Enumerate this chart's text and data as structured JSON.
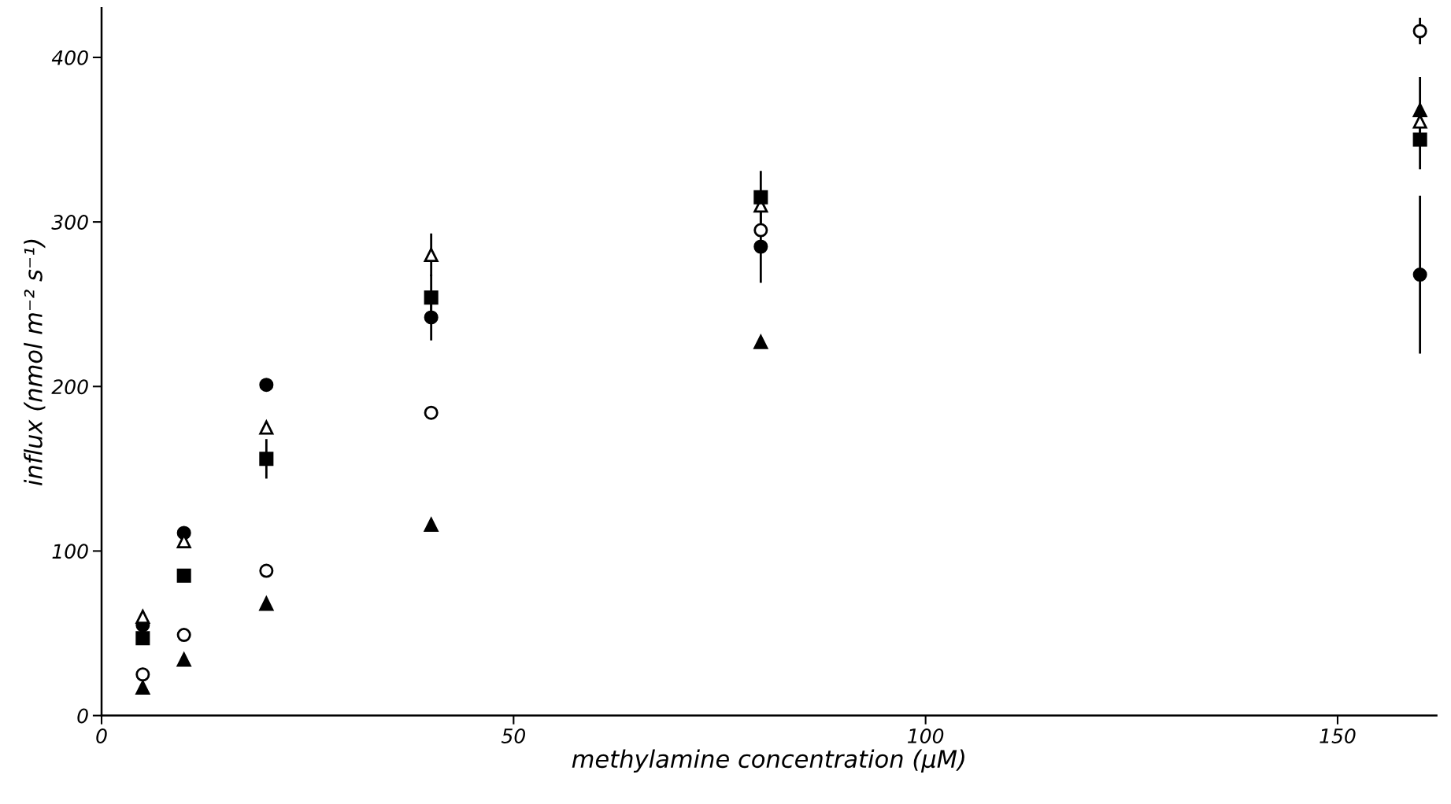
{
  "chart_data": {
    "type": "scatter",
    "xlabel": "methylamine concentration (μM)",
    "ylabel": "influx (nmol m⁻² s⁻¹)",
    "x": [
      5,
      10,
      20,
      40,
      80,
      160
    ],
    "xlim": [
      0,
      162
    ],
    "xticks": [
      0,
      50,
      100,
      150
    ],
    "ylim": [
      0,
      430
    ],
    "yticks": [
      0,
      100,
      200,
      300,
      400
    ],
    "grid": false,
    "legend": false,
    "series": [
      {
        "color": "#000000",
        "marker": "circle",
        "values": [
          55,
          111,
          201,
          242,
          285,
          268
        ],
        "errors": [
          null,
          null,
          null,
          14,
          22,
          48
        ]
      },
      {
        "color": "#ffffff",
        "marker": "circle",
        "values": [
          25,
          49,
          88,
          184,
          295,
          416
        ],
        "errors": [
          null,
          null,
          null,
          null,
          null,
          8
        ]
      },
      {
        "color": "#000000",
        "marker": "triangle",
        "values": [
          17,
          34,
          68,
          116,
          227,
          368
        ],
        "errors": [
          null,
          null,
          null,
          null,
          null,
          20
        ]
      },
      {
        "color": "#ffffff",
        "marker": "triangle",
        "values": [
          60,
          106,
          175,
          280,
          310,
          361
        ],
        "errors": [
          null,
          null,
          null,
          13,
          null,
          null
        ]
      },
      {
        "color": "#000000",
        "marker": "square",
        "values": [
          47,
          85,
          156,
          254,
          315,
          350
        ],
        "errors": [
          null,
          null,
          12,
          14,
          16,
          18
        ]
      }
    ]
  }
}
